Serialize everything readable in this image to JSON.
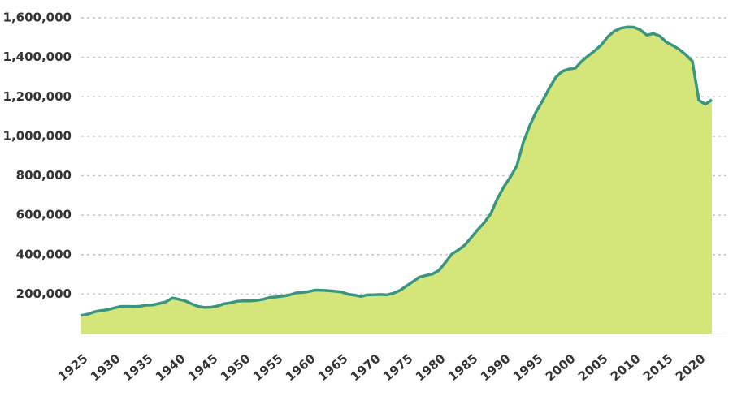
{
  "chart_data": {
    "type": "area",
    "x": [
      1925,
      1926,
      1927,
      1928,
      1929,
      1930,
      1931,
      1932,
      1933,
      1934,
      1935,
      1936,
      1937,
      1938,
      1939,
      1940,
      1941,
      1942,
      1943,
      1944,
      1945,
      1946,
      1947,
      1948,
      1949,
      1950,
      1951,
      1952,
      1953,
      1954,
      1955,
      1956,
      1957,
      1958,
      1959,
      1960,
      1961,
      1962,
      1963,
      1964,
      1965,
      1966,
      1967,
      1968,
      1969,
      1970,
      1971,
      1972,
      1973,
      1974,
      1975,
      1976,
      1977,
      1978,
      1979,
      1980,
      1981,
      1982,
      1983,
      1984,
      1985,
      1986,
      1987,
      1988,
      1989,
      1990,
      1991,
      1992,
      1993,
      1994,
      1995,
      1996,
      1997,
      1998,
      1999,
      2000,
      2001,
      2002,
      2003,
      2004,
      2005,
      2006,
      2007,
      2008,
      2009,
      2010,
      2011,
      2012,
      2013,
      2014,
      2015,
      2016,
      2017,
      2018,
      2019,
      2020,
      2021,
      2022
    ],
    "values": [
      91669,
      97991,
      109983,
      116390,
      120496,
      129453,
      137082,
      137997,
      136810,
      138316,
      144180,
      145038,
      152741,
      160285,
      179818,
      173706,
      165439,
      150384,
      137220,
      132456,
      133649,
      140079,
      151304,
      155977,
      163749,
      166123,
      165680,
      168233,
      173579,
      182901,
      185780,
      189565,
      195414,
      205643,
      208105,
      212953,
      220149,
      218830,
      217283,
      214336,
      210895,
      199654,
      194896,
      187914,
      196007,
      196429,
      198061,
      196092,
      204211,
      218466,
      240593,
      262833,
      285456,
      294396,
      301470,
      319598,
      360029,
      402914,
      423898,
      448264,
      487593,
      526436,
      562814,
      607766,
      683367,
      743382,
      792535,
      850566,
      970444,
      1054702,
      1125874,
      1182169,
      1244554,
      1299096,
      1329367,
      1340000,
      1345217,
      1380516,
      1408361,
      1433728,
      1462866,
      1504660,
      1532850,
      1547742,
      1553574,
      1552669,
      1538847,
      1512430,
      1520403,
      1507781,
      1476847,
      1459948,
      1439808,
      1412744,
      1380427,
      1182166,
      1162000,
      1185000
    ],
    "fill_color": "#d4e57a",
    "line_color": "#3a9580",
    "xlim": [
      1925,
      2022
    ],
    "xticks": [
      1925,
      1930,
      1935,
      1940,
      1945,
      1950,
      1955,
      1960,
      1965,
      1970,
      1975,
      1980,
      1985,
      1990,
      1995,
      2000,
      2005,
      2010,
      2015,
      2020
    ],
    "ylim": [
      0,
      1600000
    ],
    "yticks": [
      {
        "value": 200000,
        "label": "200,000"
      },
      {
        "value": 400000,
        "label": "400,000"
      },
      {
        "value": 600000,
        "label": "600,000"
      },
      {
        "value": 800000,
        "label": "800,000"
      },
      {
        "value": 1000000,
        "label": "1,000,000"
      },
      {
        "value": 1200000,
        "label": "1,200,000"
      },
      {
        "value": 1400000,
        "label": "1,400,000"
      },
      {
        "value": 1600000,
        "label": "1,600,000"
      }
    ],
    "grid": true
  }
}
